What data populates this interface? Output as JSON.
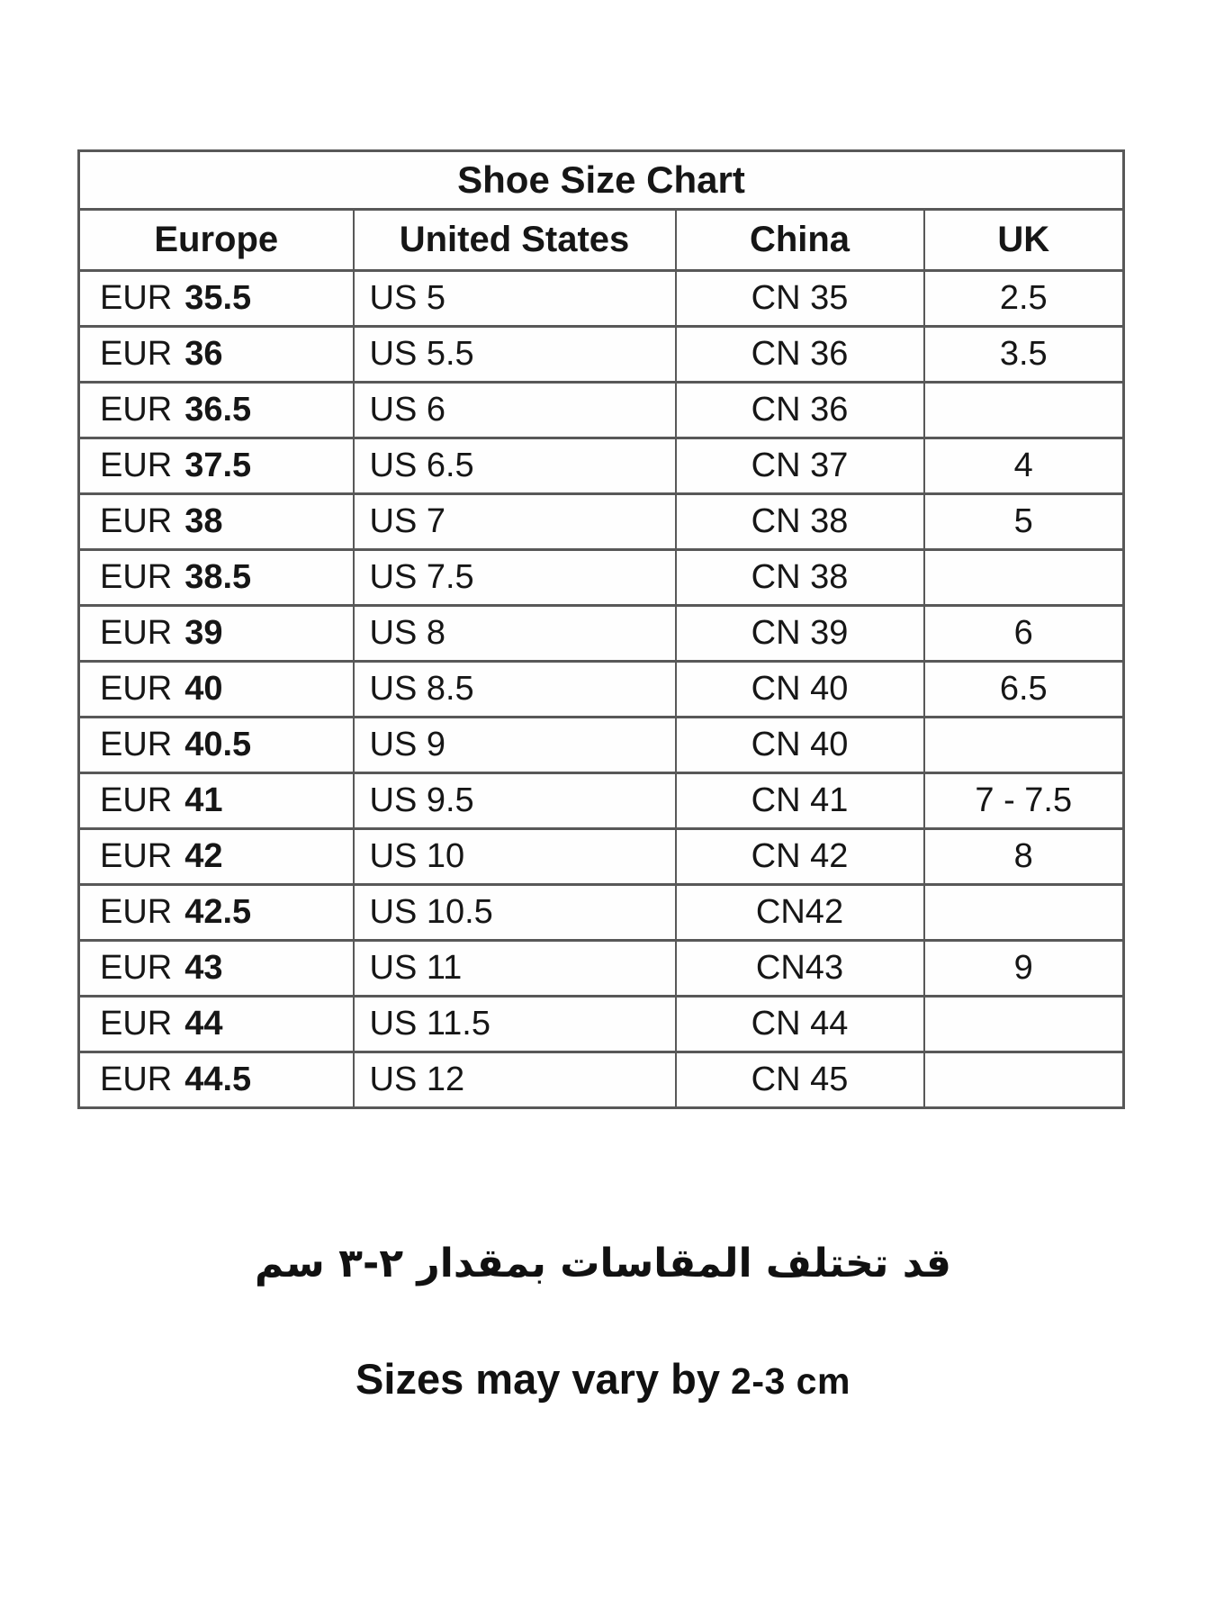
{
  "title": "Shoe Size Chart",
  "table": {
    "headers": [
      "Europe",
      "United States",
      "China",
      "UK"
    ],
    "rows": [
      {
        "eur_label": "EUR",
        "eur_value": "35.5",
        "us": "US 5",
        "cn": "CN 35",
        "uk": "2.5"
      },
      {
        "eur_label": "EUR",
        "eur_value": "36",
        "us": "US 5.5",
        "cn": "CN 36",
        "uk": "3.5"
      },
      {
        "eur_label": "EUR",
        "eur_value": "36.5",
        "us": "US 6",
        "cn": "CN 36",
        "uk": ""
      },
      {
        "eur_label": "EUR",
        "eur_value": "37.5",
        "us": "US 6.5",
        "cn": "CN 37",
        "uk": "4"
      },
      {
        "eur_label": "EUR",
        "eur_value": "38",
        "us": "US 7",
        "cn": "CN 38",
        "uk": "5"
      },
      {
        "eur_label": "EUR",
        "eur_value": "38.5",
        "us": "US 7.5",
        "cn": "CN 38",
        "uk": ""
      },
      {
        "eur_label": "EUR",
        "eur_value": "39",
        "us": "US 8",
        "cn": "CN 39",
        "uk": "6"
      },
      {
        "eur_label": "EUR",
        "eur_value": "40",
        "us": "US 8.5",
        "cn": "CN 40",
        "uk": "6.5"
      },
      {
        "eur_label": "EUR",
        "eur_value": "40.5",
        "us": "US 9",
        "cn": "CN 40",
        "uk": ""
      },
      {
        "eur_label": "EUR",
        "eur_value": "41",
        "us": "US 9.5",
        "cn": "CN 41",
        "uk": "7 - 7.5"
      },
      {
        "eur_label": "EUR",
        "eur_value": "42",
        "us": "US 10",
        "cn": "CN 42",
        "uk": "8"
      },
      {
        "eur_label": "EUR",
        "eur_value": "42.5",
        "us": "US 10.5",
        "cn": "CN42",
        "uk": ""
      },
      {
        "eur_label": "EUR",
        "eur_value": "43",
        "us": "US 11",
        "cn": "CN43",
        "uk": "9"
      },
      {
        "eur_label": "EUR",
        "eur_value": "44",
        "us": "US 11.5",
        "cn": "CN 44",
        "uk": ""
      },
      {
        "eur_label": "EUR",
        "eur_value": "44.5",
        "us": "US 12",
        "cn": "CN 45",
        "uk": ""
      }
    ]
  },
  "notes": {
    "arabic": "قد تختلف المقاسات بمقدار ٢-٣ سم",
    "english_prefix": "Sizes may vary by",
    "english_suffix": "2-3 cm"
  }
}
